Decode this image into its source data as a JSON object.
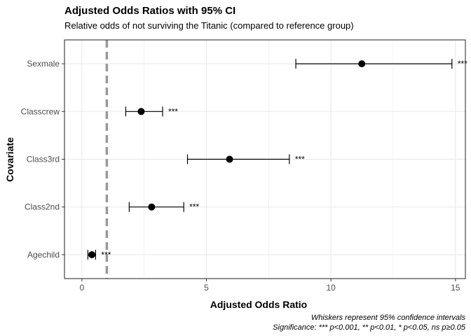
{
  "chart_data": {
    "type": "scatter",
    "title": "Adjusted Odds Ratios with 95% CI",
    "subtitle": "Relative odds of not surviving the Titanic (compared to reference group)",
    "xlabel": "Adjusted Odds Ratio",
    "ylabel": "Covariate",
    "xlim": [
      -0.7,
      15.4
    ],
    "x_ticks": [
      "0",
      "5",
      "10",
      "15"
    ],
    "x_tick_values": [
      0,
      5,
      10,
      15
    ],
    "grid": true,
    "reference_line": {
      "value": 1,
      "style": "dashed",
      "color": "#999999"
    },
    "categories": [
      "Sexmale",
      "Classcrew",
      "Class3rd",
      "Class2nd",
      "Agechild"
    ],
    "points": [
      {
        "label": "Sexmale",
        "estimate": 11.24,
        "ci_low": 8.59,
        "ci_high": 14.86,
        "significance": "***"
      },
      {
        "label": "Classcrew",
        "estimate": 2.38,
        "ci_low": 1.76,
        "ci_high": 3.24,
        "significance": "***"
      },
      {
        "label": "Class3rd",
        "estimate": 5.93,
        "ci_low": 4.24,
        "ci_high": 8.33,
        "significance": "***"
      },
      {
        "label": "Class2nd",
        "estimate": 2.8,
        "ci_low": 1.9,
        "ci_high": 4.09,
        "significance": "***"
      },
      {
        "label": "Agechild",
        "estimate": 0.4,
        "ci_low": 0.24,
        "ci_high": 0.55,
        "significance": "***"
      }
    ],
    "caption_line1": "Whiskers represent 95% confidence intervals",
    "caption_line2": "Significance: *** p<0.001, ** p<0.01, * p<0.05, ns p≥0.05",
    "colors": {
      "panel_border": "#333333",
      "grid": "#ebebeb",
      "reference": "#999999",
      "point": "#000000",
      "tick_text": "#4d4d4d"
    }
  }
}
